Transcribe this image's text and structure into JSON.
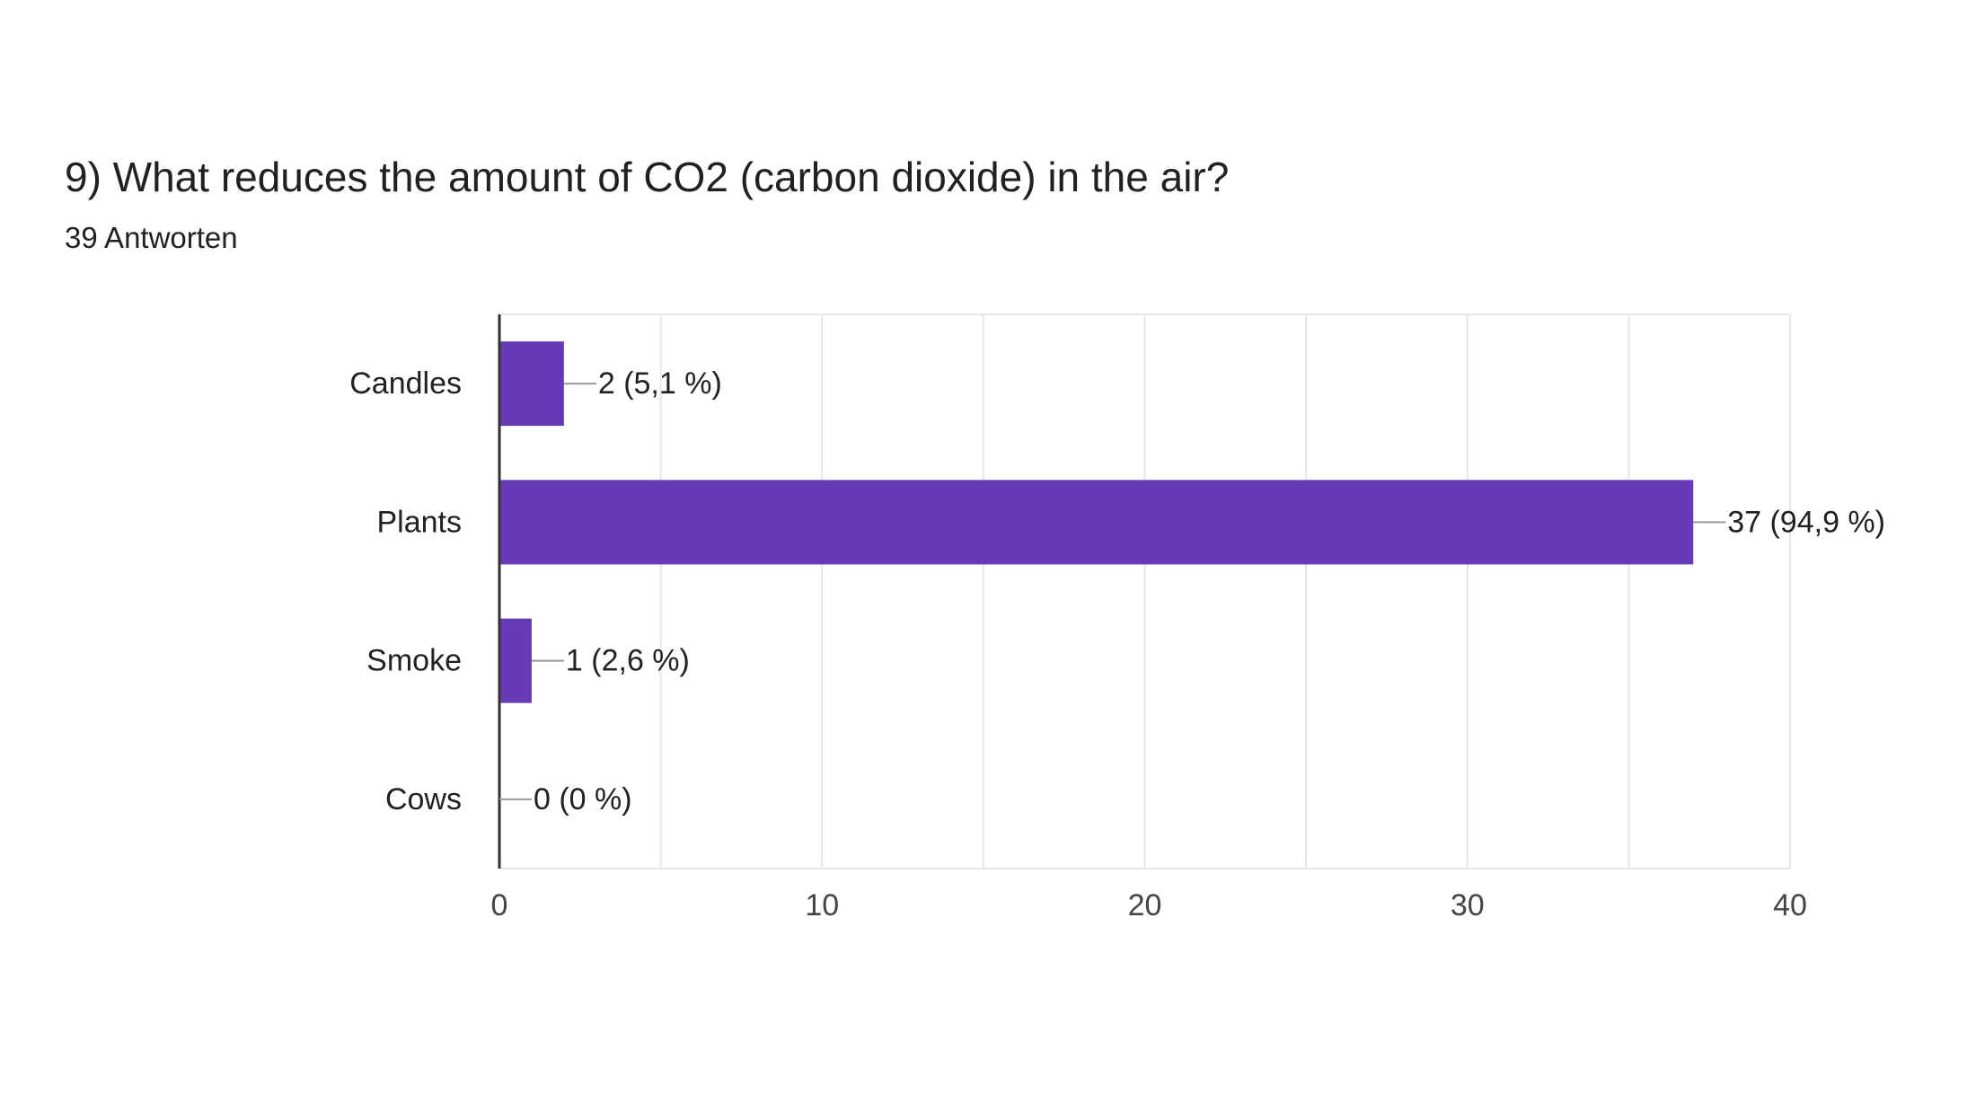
{
  "question": {
    "title": "9) What reduces the amount of CO2 (carbon dioxide) in the air?",
    "response_count": "39 Antworten"
  },
  "colors": {
    "bar": "#673ab7",
    "grid": "#e6e6e6",
    "axis": "#333333",
    "leader": "#999999",
    "text": "#202124",
    "tick_text": "#444444"
  },
  "chart_data": {
    "type": "bar",
    "orientation": "horizontal",
    "categories": [
      "Candles",
      "Plants",
      "Smoke",
      "Cows"
    ],
    "values": [
      2,
      37,
      1,
      0
    ],
    "data_labels": [
      "2 (5,1 %)",
      "37 (94,9 %)",
      "1 (2,6 %)",
      "0 (0 %)"
    ],
    "xlim": [
      0,
      40
    ],
    "x_ticks": [
      0,
      10,
      20,
      30,
      40
    ],
    "x_tick_labels": [
      "0",
      "10",
      "20",
      "30",
      "40"
    ],
    "grid_minor_step": 5,
    "grid": true,
    "legend": "none"
  }
}
